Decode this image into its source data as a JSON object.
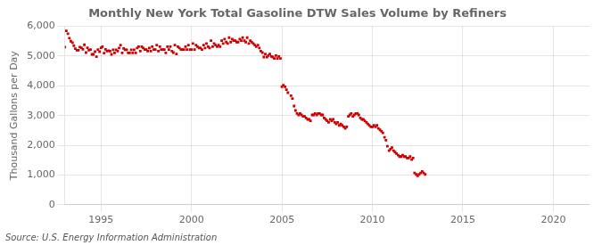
{
  "chart_data": {
    "type": "scatter",
    "title": "Monthly New York Total Gasoline DTW Sales Volume by Refiners",
    "ylabel": "Thousand Gallons per Day",
    "annotations": [
      "Source: U.S. Energy Information Administration"
    ],
    "color": "#cc0000",
    "marker": "square",
    "grid": true,
    "xlim": [
      1993.0,
      2022.0
    ],
    "xticks": [
      1995,
      2000,
      2005,
      2010,
      2015,
      2020
    ],
    "ylim": [
      0,
      6000
    ],
    "yticks": [
      0,
      {
        "value": 1000,
        "label": "1,000"
      },
      {
        "value": 2000,
        "label": "2,000"
      },
      {
        "value": 3000,
        "label": "3,000"
      },
      {
        "value": 4000,
        "label": "4,000"
      },
      {
        "value": 5000,
        "label": "5,000"
      },
      {
        "value": 6000,
        "label": "6,000"
      }
    ],
    "x": [
      1993.0,
      1993.08,
      1993.17,
      1993.25,
      1993.33,
      1993.42,
      1993.5,
      1993.58,
      1993.67,
      1993.75,
      1993.83,
      1993.92,
      1994.0,
      1994.08,
      1994.17,
      1994.25,
      1994.33,
      1994.42,
      1994.5,
      1994.58,
      1994.67,
      1994.75,
      1994.83,
      1994.92,
      1995.0,
      1995.08,
      1995.17,
      1995.25,
      1995.33,
      1995.42,
      1995.5,
      1995.58,
      1995.67,
      1995.75,
      1995.83,
      1995.92,
      1996.0,
      1996.08,
      1996.17,
      1996.25,
      1996.33,
      1996.42,
      1996.5,
      1996.58,
      1996.67,
      1996.75,
      1996.83,
      1996.92,
      1997.0,
      1997.08,
      1997.17,
      1997.25,
      1997.33,
      1997.42,
      1997.5,
      1997.58,
      1997.67,
      1997.75,
      1997.83,
      1997.92,
      1998.0,
      1998.08,
      1998.17,
      1998.25,
      1998.33,
      1998.42,
      1998.5,
      1998.58,
      1998.67,
      1998.75,
      1998.83,
      1998.92,
      1999.0,
      1999.08,
      1999.17,
      1999.25,
      1999.33,
      1999.42,
      1999.5,
      1999.58,
      1999.67,
      1999.75,
      1999.83,
      1999.92,
      2000.0,
      2000.08,
      2000.17,
      2000.25,
      2000.33,
      2000.42,
      2000.5,
      2000.58,
      2000.67,
      2000.75,
      2000.83,
      2000.92,
      2001.0,
      2001.08,
      2001.17,
      2001.25,
      2001.33,
      2001.42,
      2001.5,
      2001.58,
      2001.67,
      2001.75,
      2001.83,
      2001.92,
      2002.0,
      2002.08,
      2002.17,
      2002.25,
      2002.33,
      2002.42,
      2002.5,
      2002.58,
      2002.67,
      2002.75,
      2002.83,
      2002.92,
      2003.0,
      2003.08,
      2003.17,
      2003.25,
      2003.33,
      2003.42,
      2003.5,
      2003.58,
      2003.67,
      2003.75,
      2003.83,
      2003.92,
      2004.0,
      2004.08,
      2004.17,
      2004.25,
      2004.33,
      2004.42,
      2004.5,
      2004.58,
      2004.67,
      2004.75,
      2004.83,
      2004.92,
      2005.0,
      2005.08,
      2005.17,
      2005.25,
      2005.33,
      2005.5,
      2005.58,
      2005.67,
      2005.75,
      2005.83,
      2005.92,
      2006.0,
      2006.08,
      2006.17,
      2006.25,
      2006.33,
      2006.42,
      2006.5,
      2006.58,
      2006.67,
      2006.75,
      2006.83,
      2006.92,
      2007.0,
      2007.08,
      2007.17,
      2007.25,
      2007.33,
      2007.42,
      2007.5,
      2007.58,
      2007.67,
      2007.75,
      2007.83,
      2007.92,
      2008.0,
      2008.08,
      2008.17,
      2008.25,
      2008.33,
      2008.42,
      2008.5,
      2008.58,
      2008.67,
      2008.75,
      2008.83,
      2008.92,
      2009.0,
      2009.08,
      2009.17,
      2009.25,
      2009.33,
      2009.42,
      2009.5,
      2009.58,
      2009.67,
      2009.75,
      2009.83,
      2009.92,
      2010.0,
      2010.08,
      2010.17,
      2010.25,
      2010.33,
      2010.42,
      2010.5,
      2010.58,
      2010.67,
      2010.75,
      2010.83,
      2010.92,
      2011.0,
      2011.08,
      2011.17,
      2011.25,
      2011.33,
      2011.42,
      2011.5,
      2011.58,
      2011.67,
      2011.75,
      2011.83,
      2011.92,
      2012.0,
      2012.08,
      2012.17,
      2012.25,
      2012.33,
      2012.42,
      2012.5,
      2012.58,
      2012.67,
      2012.75,
      2012.83,
      2012.92
    ],
    "values": [
      5300,
      5850,
      5750,
      5600,
      5500,
      5450,
      5350,
      5250,
      5200,
      5200,
      5300,
      5280,
      5230,
      5380,
      5120,
      5280,
      5200,
      5220,
      5060,
      5060,
      5150,
      4980,
      5220,
      5150,
      5280,
      5320,
      5100,
      5230,
      5170,
      5180,
      5170,
      5060,
      5210,
      5110,
      5210,
      5170,
      5270,
      5370,
      5110,
      5260,
      5210,
      5210,
      5110,
      5110,
      5210,
      5110,
      5210,
      5110,
      5270,
      5320,
      5170,
      5320,
      5270,
      5220,
      5220,
      5170,
      5270,
      5170,
      5320,
      5220,
      5220,
      5370,
      5170,
      5320,
      5220,
      5220,
      5220,
      5110,
      5320,
      5220,
      5320,
      5170,
      5120,
      5370,
      5070,
      5320,
      5270,
      5220,
      5220,
      5220,
      5320,
      5220,
      5370,
      5220,
      5220,
      5420,
      5220,
      5370,
      5320,
      5270,
      5270,
      5220,
      5370,
      5270,
      5420,
      5320,
      5270,
      5520,
      5320,
      5420,
      5370,
      5320,
      5370,
      5320,
      5520,
      5420,
      5570,
      5470,
      5420,
      5620,
      5470,
      5570,
      5520,
      5520,
      5470,
      5470,
      5570,
      5520,
      5620,
      5520,
      5470,
      5620,
      5420,
      5520,
      5470,
      5420,
      5370,
      5320,
      5370,
      5270,
      5170,
      5120,
      4970,
      5070,
      4970,
      5020,
      5070,
      4990,
      4970,
      4920,
      5020,
      4920,
      4990,
      4920,
      3970,
      4020,
      3970,
      3870,
      3770,
      3670,
      3570,
      3320,
      3170,
      3070,
      3020,
      3070,
      3020,
      2970,
      2970,
      2920,
      2870,
      2870,
      2820,
      3020,
      3020,
      3070,
      3020,
      3070,
      3070,
      3020,
      3020,
      2920,
      2870,
      2820,
      2770,
      2870,
      2820,
      2870,
      2770,
      2720,
      2770,
      2670,
      2720,
      2670,
      2620,
      2570,
      2620,
      2970,
      3020,
      3070,
      2970,
      3020,
      3070,
      3070,
      3020,
      2920,
      2870,
      2870,
      2820,
      2770,
      2720,
      2670,
      2620,
      2620,
      2670,
      2620,
      2670,
      2570,
      2520,
      2470,
      2420,
      2270,
      2170,
      1970,
      1820,
      1870,
      1920,
      1820,
      1770,
      1720,
      1670,
      1620,
      1620,
      1670,
      1620,
      1620,
      1570,
      1570,
      1620,
      1520,
      1570,
      1070,
      1020,
      970,
      1020,
      1070,
      1120,
      1070,
      1020
    ]
  }
}
